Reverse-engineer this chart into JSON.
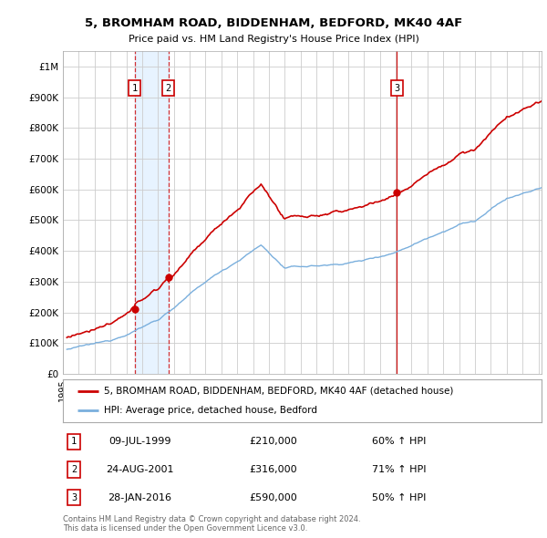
{
  "title": "5, BROMHAM ROAD, BIDDENHAM, BEDFORD, MK40 4AF",
  "subtitle": "Price paid vs. HM Land Registry's House Price Index (HPI)",
  "ylim": [
    0,
    1050000
  ],
  "yticks": [
    0,
    100000,
    200000,
    300000,
    400000,
    500000,
    600000,
    700000,
    800000,
    900000,
    1000000
  ],
  "ytick_labels": [
    "£0",
    "£100K",
    "£200K",
    "£300K",
    "£400K",
    "£500K",
    "£600K",
    "£700K",
    "£800K",
    "£900K",
    "£1M"
  ],
  "xlim_start": 1995.25,
  "xlim_end": 2025.2,
  "property_color": "#cc0000",
  "hpi_color": "#7aafdd",
  "background_color": "#ffffff",
  "grid_color": "#cccccc",
  "shade_color": "#ddeeff",
  "transactions": [
    {
      "date_num": 1999.53,
      "price": 210000,
      "label": "1"
    },
    {
      "date_num": 2001.65,
      "price": 316000,
      "label": "2"
    },
    {
      "date_num": 2016.08,
      "price": 590000,
      "label": "3"
    }
  ],
  "legend_property": "5, BROMHAM ROAD, BIDDENHAM, BEDFORD, MK40 4AF (detached house)",
  "legend_hpi": "HPI: Average price, detached house, Bedford",
  "table_rows": [
    {
      "num": "1",
      "date": "09-JUL-1999",
      "price": "£210,000",
      "change": "60% ↑ HPI"
    },
    {
      "num": "2",
      "date": "24-AUG-2001",
      "price": "£316,000",
      "change": "71% ↑ HPI"
    },
    {
      "num": "3",
      "date": "28-JAN-2016",
      "price": "£590,000",
      "change": "50% ↑ HPI"
    }
  ],
  "footnote": "Contains HM Land Registry data © Crown copyright and database right 2024.\nThis data is licensed under the Open Government Licence v3.0."
}
